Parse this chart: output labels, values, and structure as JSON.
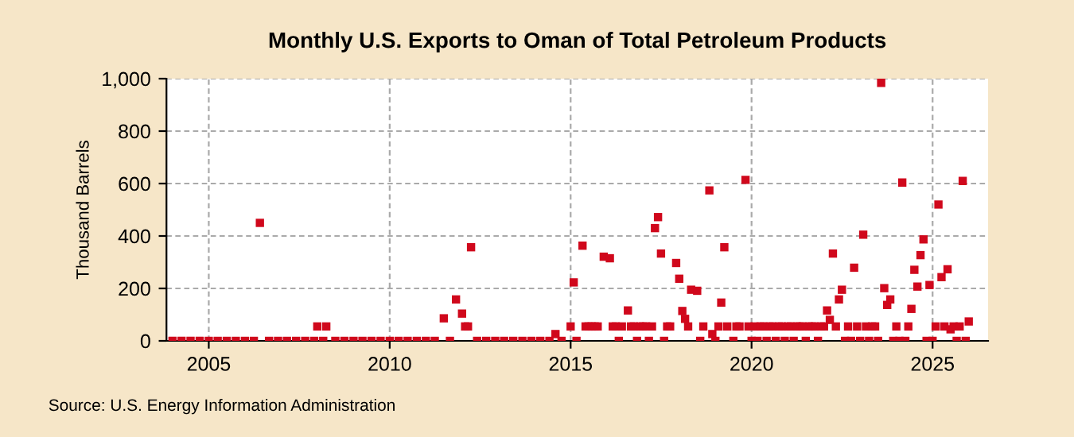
{
  "chart_data": {
    "type": "scatter",
    "title": "Monthly U.S. Exports to Oman of Total Petroleum Products",
    "ylabel": "Thousand Barrels",
    "annotations": [
      "Source: U.S. Energy Information Administration"
    ],
    "x": [
      "2004-01",
      "2004-04",
      "2004-07",
      "2004-10",
      "2005-01",
      "2005-04",
      "2005-07",
      "2005-10",
      "2006-01",
      "2006-04",
      "2006-06",
      "2006-09",
      "2006-12",
      "2007-03",
      "2007-06",
      "2007-09",
      "2007-12",
      "2008-01",
      "2008-03",
      "2008-04",
      "2008-07",
      "2008-10",
      "2009-01",
      "2009-04",
      "2009-07",
      "2009-10",
      "2010-01",
      "2010-04",
      "2010-07",
      "2010-10",
      "2011-01",
      "2011-04",
      "2011-07",
      "2011-09",
      "2011-11",
      "2012-01",
      "2012-02",
      "2012-03",
      "2012-04",
      "2012-06",
      "2012-09",
      "2012-12",
      "2013-03",
      "2013-06",
      "2013-09",
      "2013-12",
      "2014-03",
      "2014-06",
      "2014-08",
      "2014-10",
      "2015-01",
      "2015-02",
      "2015-03",
      "2015-05",
      "2015-06",
      "2015-07",
      "2015-08",
      "2015-09",
      "2015-10",
      "2015-12",
      "2016-02",
      "2016-03",
      "2016-04",
      "2016-05",
      "2016-06",
      "2016-08",
      "2016-09",
      "2016-10",
      "2016-11",
      "2016-12",
      "2017-01",
      "2017-02",
      "2017-03",
      "2017-04",
      "2017-05",
      "2017-06",
      "2017-07",
      "2017-08",
      "2017-09",
      "2017-10",
      "2017-12",
      "2018-01",
      "2018-02",
      "2018-03",
      "2018-04",
      "2018-05",
      "2018-07",
      "2018-08",
      "2018-09",
      "2018-11",
      "2018-12",
      "2019-01",
      "2019-02",
      "2019-03",
      "2019-04",
      "2019-05",
      "2019-07",
      "2019-08",
      "2019-09",
      "2019-11",
      "2019-12",
      "2020-01",
      "2020-02",
      "2020-03",
      "2020-04",
      "2020-05",
      "2020-06",
      "2020-07",
      "2020-08",
      "2020-09",
      "2020-10",
      "2020-11",
      "2020-12",
      "2021-01",
      "2021-02",
      "2021-03",
      "2021-04",
      "2021-05",
      "2021-06",
      "2021-07",
      "2021-08",
      "2021-09",
      "2021-10",
      "2021-11",
      "2021-12",
      "2022-01",
      "2022-02",
      "2022-03",
      "2022-04",
      "2022-05",
      "2022-06",
      "2022-07",
      "2022-08",
      "2022-09",
      "2022-10",
      "2022-11",
      "2022-12",
      "2023-01",
      "2023-02",
      "2023-03",
      "2023-04",
      "2023-05",
      "2023-06",
      "2023-07",
      "2023-08",
      "2023-09",
      "2023-10",
      "2023-11",
      "2023-12",
      "2024-01",
      "2024-02",
      "2024-03",
      "2024-04",
      "2024-05",
      "2024-06",
      "2024-07",
      "2024-08",
      "2024-09",
      "2024-10",
      "2024-11",
      "2024-12",
      "2025-01",
      "2025-02",
      "2025-03",
      "2025-04",
      "2025-05",
      "2025-06",
      "2025-07",
      "2025-08",
      "2025-09",
      "2025-10",
      "2025-11",
      "2025-12",
      "2026-01"
    ],
    "series": [
      {
        "color": "#d0081c",
        "values": [
          0,
          0,
          0,
          0,
          0,
          0,
          0,
          0,
          0,
          0,
          450,
          0,
          0,
          0,
          0,
          0,
          0,
          55,
          0,
          55,
          0,
          0,
          0,
          0,
          0,
          0,
          0,
          0,
          0,
          0,
          0,
          0,
          86,
          0,
          158,
          104,
          55,
          55,
          357,
          0,
          0,
          0,
          0,
          0,
          0,
          0,
          0,
          0,
          26,
          0,
          55,
          223,
          0,
          363,
          55,
          55,
          55,
          55,
          55,
          321,
          315,
          55,
          55,
          0,
          55,
          116,
          55,
          55,
          0,
          55,
          55,
          55,
          0,
          55,
          430,
          472,
          333,
          0,
          55,
          55,
          297,
          237,
          114,
          84,
          55,
          195,
          191,
          0,
          55,
          574,
          26,
          0,
          55,
          146,
          357,
          55,
          0,
          55,
          55,
          614,
          55,
          0,
          55,
          0,
          55,
          55,
          0,
          55,
          55,
          0,
          55,
          55,
          0,
          55,
          55,
          0,
          55,
          55,
          55,
          0,
          55,
          55,
          55,
          0,
          55,
          55,
          116,
          80,
          333,
          55,
          158,
          195,
          0,
          55,
          0,
          279,
          55,
          0,
          405,
          55,
          0,
          55,
          55,
          0,
          984,
          201,
          137,
          158,
          0,
          55,
          0,
          604,
          0,
          55,
          122,
          271,
          207,
          327,
          387,
          0,
          213,
          0,
          55,
          520,
          243,
          55,
          273,
          44,
          55,
          0,
          55,
          610,
          0,
          74
        ]
      }
    ],
    "xlim": [
      "2003-11-01",
      "2026-07-15"
    ],
    "xticks": [
      {
        "value": "2005-01-01",
        "label": "2005"
      },
      {
        "value": "2010-01-01",
        "label": "2010"
      },
      {
        "value": "2015-01-01",
        "label": "2015"
      },
      {
        "value": "2020-01-01",
        "label": "2020"
      },
      {
        "value": "2025-01-01",
        "label": "2025"
      }
    ],
    "ylim": [
      0,
      1000
    ],
    "yticks": [
      0,
      200,
      400,
      600,
      {
        "value": 800,
        "label": "800"
      },
      {
        "value": 1000,
        "label": "1,000"
      }
    ],
    "grid": true,
    "marker": "square"
  }
}
